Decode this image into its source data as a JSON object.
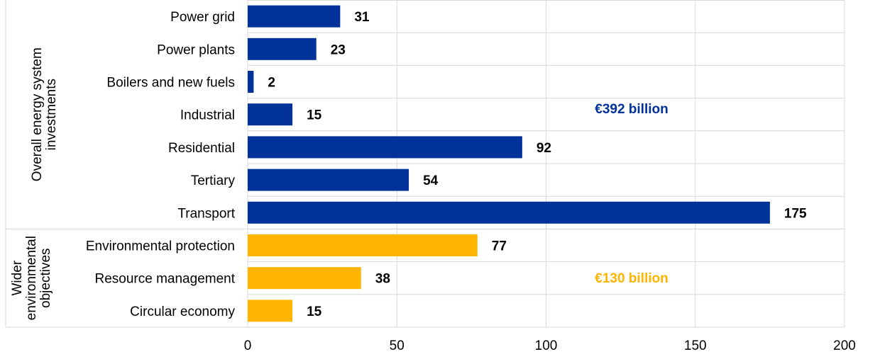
{
  "chart_data": {
    "type": "bar",
    "orientation": "horizontal",
    "xlim": [
      0,
      200
    ],
    "x_ticks": [
      "0",
      "50",
      "100",
      "150",
      "200"
    ],
    "grid": true,
    "groups": [
      {
        "label_lines": [
          "Overall energy system",
          "investments"
        ],
        "color": "#003299",
        "total_label": "€392 billion",
        "categories": [
          "Power grid",
          "Power plants",
          "Boilers and new fuels",
          "Industrial",
          "Residential",
          "Tertiary",
          "Transport"
        ],
        "values": [
          31,
          23,
          2,
          15,
          92,
          54,
          175
        ]
      },
      {
        "label_lines": [
          "Wider",
          "environmental",
          "objectives"
        ],
        "color": "#FFB400",
        "total_label": "€130 billion",
        "categories": [
          "Environmental protection",
          "Resource management",
          "Circular economy"
        ],
        "values": [
          77,
          38,
          15
        ]
      }
    ]
  }
}
